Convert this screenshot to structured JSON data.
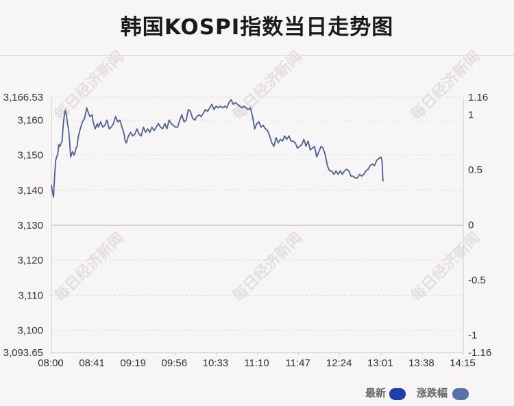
{
  "page": {
    "title": "韩国KOSPI指数当日走势图"
  },
  "watermark": "每日经济新闻",
  "legend": {
    "items": [
      {
        "label": "最新",
        "color": "#1f3fa6"
      },
      {
        "label": "涨跌幅",
        "color": "#5a72a8"
      }
    ]
  },
  "chart_data": {
    "type": "line",
    "title": "韩国KOSPI指数当日走势图",
    "line_color": "#4a5f95",
    "y_left": {
      "min": 3093.65,
      "max": 3166.53,
      "ticks": [
        {
          "value": 3166.53,
          "label": "3,166.53"
        },
        {
          "value": 3160,
          "label": "3,160"
        },
        {
          "value": 3150,
          "label": "3,150"
        },
        {
          "value": 3140,
          "label": "3,140"
        },
        {
          "value": 3130,
          "label": "3,130"
        },
        {
          "value": 3120,
          "label": "3,120"
        },
        {
          "value": 3110,
          "label": "3,110"
        },
        {
          "value": 3100,
          "label": "3,100"
        },
        {
          "value": 3093.65,
          "label": "3,093.65"
        }
      ]
    },
    "y_right": {
      "min": -1.16,
      "max": 1.16,
      "ticks": [
        {
          "value": 1.16,
          "label": "1.16"
        },
        {
          "value": 1,
          "label": "1"
        },
        {
          "value": 0.5,
          "label": "0.5"
        },
        {
          "value": 0,
          "label": "0"
        },
        {
          "value": -0.5,
          "label": "-0.5"
        },
        {
          "value": -1,
          "label": "-1"
        },
        {
          "value": -1.16,
          "label": "-1.16"
        }
      ]
    },
    "x_ticks": [
      "08:00",
      "08:41",
      "09:19",
      "09:56",
      "10:33",
      "11:10",
      "11:47",
      "12:24",
      "13:01",
      "13:38",
      "14:15"
    ],
    "x_range_minutes": [
      480,
      865
    ],
    "baseline": 3130,
    "grid": "dashed-horizontal",
    "series": [
      {
        "values": [
          [
            480,
            3141.5
          ],
          [
            481,
            3139.5
          ],
          [
            482,
            3138
          ],
          [
            483,
            3144
          ],
          [
            484,
            3148.5
          ],
          [
            486,
            3150.5
          ],
          [
            487,
            3153
          ],
          [
            488,
            3152.5
          ],
          [
            490,
            3154
          ],
          [
            491,
            3158.5
          ],
          [
            492,
            3161
          ],
          [
            493,
            3162.8
          ],
          [
            494,
            3161.5
          ],
          [
            495,
            3159
          ],
          [
            496,
            3157.5
          ],
          [
            497,
            3154
          ],
          [
            498,
            3149.5
          ],
          [
            499,
            3150.5
          ],
          [
            500,
            3151
          ],
          [
            501,
            3150
          ],
          [
            502,
            3150.5
          ],
          [
            503,
            3152
          ],
          [
            504,
            3152.5
          ],
          [
            505,
            3155
          ],
          [
            507,
            3157.5
          ],
          [
            509,
            3159.5
          ],
          [
            511,
            3160.5
          ],
          [
            513,
            3163.5
          ],
          [
            514,
            3162.5
          ],
          [
            516,
            3161
          ],
          [
            518,
            3161.5
          ],
          [
            519,
            3159.5
          ],
          [
            520,
            3158.5
          ],
          [
            521,
            3157.5
          ],
          [
            523,
            3159
          ],
          [
            524,
            3158
          ],
          [
            526,
            3159.5
          ],
          [
            528,
            3158
          ],
          [
            530,
            3158.5
          ],
          [
            532,
            3160
          ],
          [
            534,
            3157.5
          ],
          [
            536,
            3158
          ],
          [
            538,
            3159
          ],
          [
            540,
            3161
          ],
          [
            542,
            3159.5
          ],
          [
            544,
            3160
          ],
          [
            546,
            3158
          ],
          [
            548,
            3156
          ],
          [
            549,
            3154
          ],
          [
            550,
            3153.5
          ],
          [
            552,
            3155.5
          ],
          [
            554,
            3156.5
          ],
          [
            556,
            3155.5
          ],
          [
            558,
            3156
          ],
          [
            560,
            3157.5
          ],
          [
            562,
            3156
          ],
          [
            564,
            3155.5
          ],
          [
            566,
            3158
          ],
          [
            568,
            3156.5
          ],
          [
            570,
            3157.5
          ],
          [
            572,
            3156.5
          ],
          [
            574,
            3158
          ],
          [
            576,
            3157
          ],
          [
            578,
            3158
          ],
          [
            580,
            3159
          ],
          [
            582,
            3158
          ],
          [
            584,
            3157.5
          ],
          [
            586,
            3159
          ],
          [
            588,
            3157.5
          ],
          [
            590,
            3160
          ],
          [
            592,
            3159
          ],
          [
            594,
            3158.5
          ],
          [
            596,
            3158
          ],
          [
            598,
            3158
          ],
          [
            600,
            3160
          ],
          [
            602,
            3161.5
          ],
          [
            604,
            3159.5
          ],
          [
            606,
            3160
          ],
          [
            608,
            3163
          ],
          [
            610,
            3162.5
          ],
          [
            612,
            3160.5
          ],
          [
            614,
            3160
          ],
          [
            616,
            3161
          ],
          [
            618,
            3161.5
          ],
          [
            620,
            3161
          ],
          [
            622,
            3162
          ],
          [
            624,
            3163
          ],
          [
            626,
            3162.5
          ],
          [
            628,
            3163.5
          ],
          [
            630,
            3164.5
          ],
          [
            632,
            3163
          ],
          [
            634,
            3164
          ],
          [
            636,
            3163.5
          ],
          [
            638,
            3164
          ],
          [
            640,
            3163.5
          ],
          [
            642,
            3164
          ],
          [
            644,
            3163.5
          ],
          [
            646,
            3165
          ],
          [
            648,
            3165.8
          ],
          [
            650,
            3164.5
          ],
          [
            652,
            3165
          ],
          [
            654,
            3164.5
          ],
          [
            656,
            3164
          ],
          [
            658,
            3163.5
          ],
          [
            660,
            3164
          ],
          [
            662,
            3163.5
          ],
          [
            664,
            3163
          ],
          [
            666,
            3163.5
          ],
          [
            668,
            3161
          ],
          [
            670,
            3157.5
          ],
          [
            672,
            3159
          ],
          [
            674,
            3159.5
          ],
          [
            676,
            3158
          ],
          [
            678,
            3158.5
          ],
          [
            680,
            3157.5
          ],
          [
            682,
            3157
          ],
          [
            684,
            3155.5
          ],
          [
            686,
            3153.5
          ],
          [
            688,
            3152.5
          ],
          [
            690,
            3155
          ],
          [
            692,
            3153.5
          ],
          [
            694,
            3154.5
          ],
          [
            696,
            3154
          ],
          [
            698,
            3155.5
          ],
          [
            700,
            3154.5
          ],
          [
            702,
            3155.5
          ],
          [
            704,
            3154
          ],
          [
            706,
            3154
          ],
          [
            708,
            3153.5
          ],
          [
            710,
            3152
          ],
          [
            712,
            3152.5
          ],
          [
            714,
            3153
          ],
          [
            716,
            3154.5
          ],
          [
            718,
            3152.5
          ],
          [
            720,
            3154
          ],
          [
            722,
            3151.5
          ],
          [
            724,
            3152
          ],
          [
            726,
            3152.5
          ],
          [
            728,
            3149.5
          ],
          [
            730,
            3151
          ],
          [
            732,
            3152.5
          ],
          [
            734,
            3152
          ],
          [
            736,
            3150
          ],
          [
            738,
            3147
          ],
          [
            740,
            3145.5
          ],
          [
            742,
            3145.5
          ],
          [
            744,
            3144.5
          ],
          [
            746,
            3145.5
          ],
          [
            748,
            3144.5
          ],
          [
            750,
            3145.5
          ],
          [
            752,
            3144.5
          ],
          [
            754,
            3145.5
          ],
          [
            756,
            3146
          ],
          [
            758,
            3145.5
          ],
          [
            760,
            3144
          ],
          [
            762,
            3144
          ],
          [
            764,
            3143.5
          ],
          [
            766,
            3143.5
          ],
          [
            768,
            3144.5
          ],
          [
            770,
            3144
          ],
          [
            772,
            3144.5
          ],
          [
            774,
            3145.5
          ],
          [
            776,
            3146
          ],
          [
            778,
            3147
          ],
          [
            780,
            3147.5
          ],
          [
            782,
            3147
          ],
          [
            784,
            3148.5
          ],
          [
            786,
            3149
          ],
          [
            788,
            3149.5
          ],
          [
            789,
            3148.5
          ],
          [
            790,
            3142.5
          ]
        ]
      }
    ]
  }
}
